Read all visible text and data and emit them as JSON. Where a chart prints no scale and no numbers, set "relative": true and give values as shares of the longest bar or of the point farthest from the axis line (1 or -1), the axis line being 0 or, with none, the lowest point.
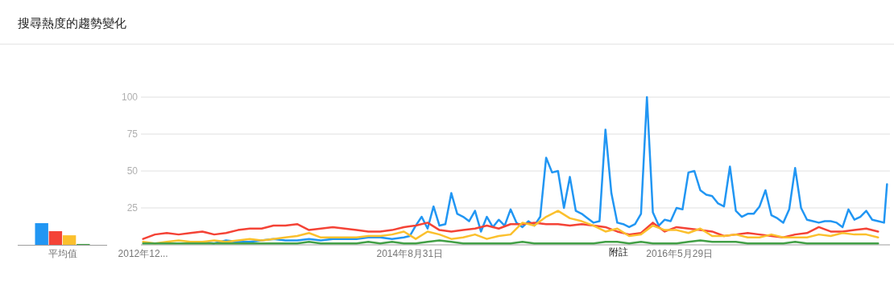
{
  "chart_data": [
    {
      "type": "bar",
      "relative": true,
      "categories": [
        "平均值"
      ],
      "series": [
        {
          "color": "#2196f3",
          "values": [
            1
          ]
        },
        {
          "color": "#f44336",
          "values": [
            0.63
          ]
        },
        {
          "color": "#fbc02d",
          "values": [
            0.44
          ]
        },
        {
          "color": "#43a047",
          "values": [
            0.04
          ]
        }
      ]
    },
    {
      "type": "line",
      "title": "搜尋熱度的趨勢變化",
      "grid": "y",
      "xlim": [
        "2012-12-04",
        "2017-10-08"
      ],
      "ylim": [
        0,
        100
      ],
      "yticks": [
        25,
        50,
        75,
        100
      ],
      "xticks": [
        {
          "value": "2012-12-09",
          "label": "2012年12..."
        },
        {
          "value": "2014-08-31",
          "label": "2014年8月31日"
        },
        {
          "value": "2016-05-29",
          "label": "2016年5月29日"
        }
      ],
      "annotations": [
        "附註"
      ],
      "x": [
        "2012-12-09",
        "2013-01-06",
        "2013-02-03",
        "2013-03-03",
        "2013-03-31",
        "2013-04-28",
        "2013-05-26",
        "2013-06-23",
        "2013-07-21",
        "2013-08-18",
        "2013-09-15",
        "2013-10-13",
        "2013-11-10",
        "2013-12-08",
        "2014-01-05",
        "2014-02-02",
        "2014-03-02",
        "2014-03-30",
        "2014-04-27",
        "2014-05-25",
        "2014-06-22",
        "2014-07-20",
        "2014-08-17",
        "2014-09-14",
        "2014-10-12",
        "2014-11-09",
        "2014-12-07",
        "2015-01-04",
        "2015-02-01",
        "2015-03-01",
        "2015-03-29",
        "2015-04-26",
        "2015-05-24",
        "2015-06-21",
        "2015-07-19",
        "2015-08-16",
        "2015-09-13",
        "2015-10-11",
        "2015-11-08",
        "2015-12-06",
        "2016-01-03",
        "2016-01-31",
        "2016-02-28",
        "2016-03-27",
        "2016-04-24",
        "2016-05-22",
        "2016-06-19",
        "2016-07-17",
        "2016-08-14",
        "2016-09-11",
        "2016-10-09",
        "2016-11-06",
        "2016-12-04",
        "2017-01-01",
        "2017-01-29",
        "2017-02-26",
        "2017-03-26",
        "2017-04-23",
        "2017-05-21",
        "2017-06-18",
        "2017-07-16",
        "2017-08-13",
        "2017-09-10"
      ],
      "series": [
        {
          "color": "#2196f3",
          "x": [
            "2013-04-28",
            "2013-05-26",
            "2013-06-23",
            "2013-07-21",
            "2013-08-18",
            "2013-09-15",
            "2013-10-13",
            "2013-11-10",
            "2013-12-08",
            "2014-01-05",
            "2014-02-02",
            "2014-03-02",
            "2014-03-30",
            "2014-04-27",
            "2014-05-25",
            "2014-06-22",
            "2014-07-20",
            "2014-08-17",
            "2014-08-31",
            "2014-09-14",
            "2014-09-28",
            "2014-10-12",
            "2014-10-26",
            "2014-11-09",
            "2014-11-23",
            "2014-12-07",
            "2014-12-21",
            "2015-01-04",
            "2015-01-18",
            "2015-02-01",
            "2015-02-15",
            "2015-03-01",
            "2015-03-15",
            "2015-03-29",
            "2015-04-12",
            "2015-04-26",
            "2015-05-10",
            "2015-05-24",
            "2015-06-07",
            "2015-06-21",
            "2015-07-05",
            "2015-07-19",
            "2015-08-02",
            "2015-08-16",
            "2015-08-30",
            "2015-09-13",
            "2015-09-27",
            "2015-10-11",
            "2015-10-25",
            "2015-11-08",
            "2015-11-22",
            "2015-12-06",
            "2015-12-20",
            "2016-01-03",
            "2016-01-17",
            "2016-01-31",
            "2016-02-14",
            "2016-02-28",
            "2016-03-13",
            "2016-03-27",
            "2016-04-10",
            "2016-04-24",
            "2016-05-08",
            "2016-05-22",
            "2016-06-05",
            "2016-06-19",
            "2016-07-03",
            "2016-07-17",
            "2016-07-31",
            "2016-08-14",
            "2016-08-28",
            "2016-09-11",
            "2016-09-25",
            "2016-10-09",
            "2016-10-23",
            "2016-11-06",
            "2016-11-20",
            "2016-12-04",
            "2016-12-18",
            "2017-01-01",
            "2017-01-15",
            "2017-01-29",
            "2017-02-12",
            "2017-02-26",
            "2017-03-12",
            "2017-03-26",
            "2017-04-09",
            "2017-04-23",
            "2017-05-07",
            "2017-05-21",
            "2017-06-04",
            "2017-06-18",
            "2017-07-02",
            "2017-07-16",
            "2017-07-30",
            "2017-08-13",
            "2017-08-27",
            "2017-09-10",
            "2017-09-24",
            "2017-10-01"
          ],
          "values": [
            2,
            1,
            3,
            2,
            2,
            3,
            4,
            3,
            3,
            4,
            3,
            4,
            4,
            4,
            5,
            5,
            4,
            5,
            6,
            13,
            19,
            11,
            26,
            13,
            14,
            35,
            21,
            19,
            16,
            23,
            9,
            19,
            12,
            17,
            13,
            24,
            15,
            12,
            16,
            13,
            19,
            59,
            49,
            50,
            25,
            46,
            23,
            21,
            18,
            15,
            16,
            78,
            35,
            15,
            14,
            12,
            14,
            21,
            100,
            22,
            13,
            17,
            16,
            25,
            24,
            49,
            50,
            37,
            34,
            33,
            28,
            26,
            53,
            23,
            19,
            21,
            21,
            26,
            37,
            20,
            18,
            15,
            24,
            52,
            25,
            17,
            16,
            15,
            16,
            16,
            15,
            12,
            24,
            17,
            19,
            23,
            17,
            16,
            15,
            41
          ]
        },
        {
          "color": "#f44336",
          "values": [
            4,
            7,
            8,
            7,
            8,
            9,
            7,
            8,
            10,
            11,
            11,
            13,
            13,
            14,
            10,
            11,
            12,
            11,
            10,
            9,
            9,
            10,
            12,
            13,
            15,
            10,
            9,
            10,
            11,
            13,
            11,
            14,
            14,
            15,
            14,
            14,
            13,
            14,
            13,
            12,
            9,
            7,
            8,
            15,
            9,
            12,
            11,
            10,
            9,
            6,
            7,
            8,
            7,
            6,
            5,
            7,
            8,
            12,
            9,
            9,
            10,
            11,
            9
          ]
        },
        {
          "color": "#fbc02d",
          "values": [
            2,
            1,
            2,
            3,
            2,
            2,
            3,
            2,
            3,
            4,
            3,
            4,
            5,
            6,
            8,
            5,
            5,
            5,
            5,
            6,
            6,
            7,
            9,
            4,
            9,
            7,
            4,
            5,
            7,
            4,
            6,
            7,
            15,
            13,
            19,
            23,
            18,
            16,
            13,
            9,
            11,
            6,
            7,
            13,
            10,
            10,
            8,
            11,
            6,
            6,
            7,
            5,
            5,
            7,
            5,
            5,
            5,
            7,
            6,
            8,
            7,
            7,
            5
          ]
        },
        {
          "color": "#43a047",
          "values": [
            1,
            1,
            1,
            1,
            1,
            1,
            1,
            1,
            1,
            1,
            1,
            1,
            1,
            1,
            2,
            1,
            1,
            1,
            1,
            2,
            1,
            2,
            1,
            1,
            2,
            3,
            2,
            1,
            1,
            1,
            1,
            1,
            2,
            1,
            1,
            1,
            1,
            1,
            1,
            2,
            2,
            1,
            2,
            1,
            1,
            1,
            2,
            3,
            2,
            2,
            2,
            1,
            1,
            1,
            1,
            2,
            1,
            1,
            1,
            1,
            1,
            1,
            1
          ]
        }
      ]
    }
  ]
}
